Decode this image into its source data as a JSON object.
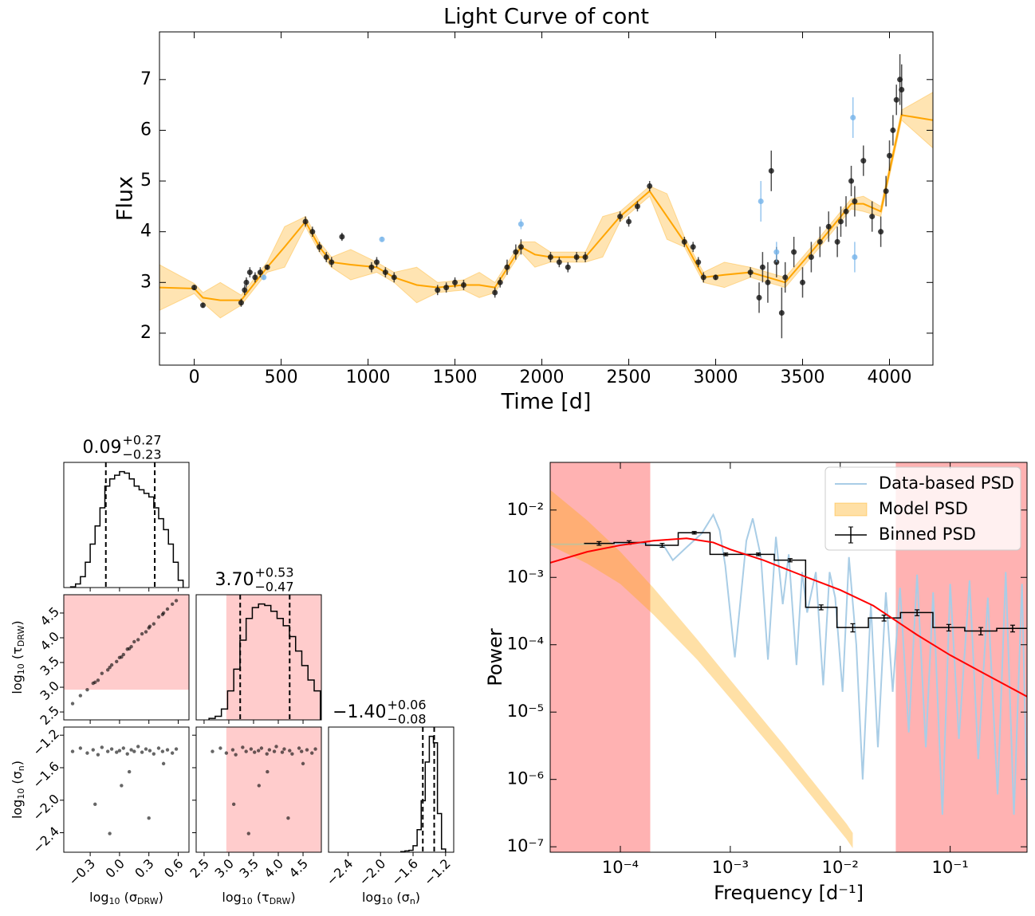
{
  "chart_data": [
    {
      "type": "errorbar",
      "title": "Light Curve of cont",
      "x_label": "Time [d]",
      "y_label": "Flux",
      "xlim": [
        -200,
        4250
      ],
      "ylim": [
        1.37,
        7.94
      ],
      "xticks": [
        0,
        500,
        1000,
        1500,
        2000,
        2500,
        3000,
        3500,
        4000
      ],
      "yticks": [
        2,
        3,
        4,
        5,
        6,
        7
      ],
      "series": [
        {
          "color": "#111111",
          "x": [
            0,
            50,
            270,
            290,
            300,
            320,
            350,
            380,
            420,
            640,
            680,
            720,
            760,
            790,
            850,
            1020,
            1050,
            1100,
            1150,
            1400,
            1450,
            1500,
            1550,
            1730,
            1760,
            1800,
            1850,
            1880,
            2050,
            2100,
            2150,
            2200,
            2250,
            2450,
            2500,
            2550,
            2620,
            2820,
            2870,
            2900,
            2930,
            3000,
            3200,
            3250,
            3270,
            3300,
            3320,
            3350,
            3380,
            3400,
            3450,
            3500,
            3550,
            3600,
            3650,
            3700,
            3720,
            3750,
            3780,
            3800,
            3850,
            3900,
            3950,
            3980,
            4000,
            4020,
            4040,
            4060,
            4070
          ],
          "values": [
            2.9,
            2.55,
            2.6,
            2.85,
            3.0,
            3.2,
            3.1,
            3.2,
            3.3,
            4.2,
            4.0,
            3.7,
            3.5,
            3.4,
            3.9,
            3.3,
            3.4,
            3.2,
            3.1,
            2.85,
            2.9,
            3.0,
            2.95,
            2.8,
            3.0,
            3.3,
            3.6,
            3.7,
            3.5,
            3.4,
            3.3,
            3.5,
            3.5,
            4.3,
            4.2,
            4.5,
            4.9,
            3.8,
            3.7,
            3.4,
            3.1,
            3.1,
            3.2,
            2.7,
            3.3,
            3.0,
            5.2,
            3.4,
            2.4,
            3.1,
            3.6,
            3.0,
            3.5,
            3.8,
            4.1,
            3.8,
            4.2,
            4.4,
            5.0,
            4.6,
            5.4,
            4.3,
            4.0,
            4.8,
            5.5,
            6.0,
            6.6,
            7.0,
            6.8
          ],
          "errors": [
            0.05,
            0.05,
            0.08,
            0.1,
            0.1,
            0.1,
            0.1,
            0.1,
            0.05,
            0.1,
            0.1,
            0.1,
            0.1,
            0.1,
            0.08,
            0.1,
            0.1,
            0.1,
            0.1,
            0.1,
            0.1,
            0.1,
            0.1,
            0.1,
            0.1,
            0.15,
            0.15,
            0.15,
            0.1,
            0.1,
            0.1,
            0.1,
            0.1,
            0.1,
            0.1,
            0.1,
            0.1,
            0.1,
            0.1,
            0.1,
            0.1,
            0.05,
            0.1,
            0.3,
            0.3,
            0.4,
            0.4,
            0.3,
            0.5,
            0.3,
            0.3,
            0.3,
            0.3,
            0.3,
            0.3,
            0.3,
            0.3,
            0.3,
            0.3,
            0.3,
            0.3,
            0.3,
            0.3,
            0.3,
            0.3,
            0.3,
            0.3,
            0.5,
            0.5
          ]
        },
        {
          "color": "#74b3ea",
          "x": [
            400,
            1080,
            1880,
            3260,
            3350,
            3790,
            3800
          ],
          "values": [
            3.1,
            3.85,
            4.15,
            4.6,
            3.6,
            6.25,
            3.5
          ],
          "errors": [
            0.05,
            0.05,
            0.1,
            0.4,
            0.2,
            0.4,
            0.3
          ]
        }
      ],
      "model": {
        "color": "#ffa500",
        "x": [
          -200,
          0,
          50,
          150,
          270,
          420,
          520,
          640,
          720,
          790,
          900,
          1050,
          1150,
          1280,
          1400,
          1550,
          1640,
          1730,
          1880,
          1960,
          2050,
          2250,
          2350,
          2450,
          2620,
          2720,
          2820,
          2930,
          3050,
          3200,
          3400,
          3600,
          3780,
          3850,
          3950,
          4070,
          4250
        ],
        "values": [
          2.9,
          2.88,
          2.7,
          2.65,
          2.65,
          3.3,
          3.7,
          4.2,
          3.7,
          3.4,
          3.35,
          3.3,
          3.1,
          2.95,
          2.9,
          2.95,
          2.95,
          2.9,
          3.7,
          3.55,
          3.5,
          3.5,
          3.9,
          4.3,
          4.8,
          4.3,
          3.8,
          3.1,
          3.15,
          3.2,
          3.0,
          3.8,
          4.55,
          4.55,
          4.4,
          6.3,
          6.2
        ],
        "errors": [
          0.45,
          0.1,
          0.1,
          0.35,
          0.1,
          0.1,
          0.4,
          0.1,
          0.1,
          0.1,
          0.3,
          0.1,
          0.1,
          0.35,
          0.1,
          0.1,
          0.25,
          0.1,
          0.1,
          0.25,
          0.1,
          0.1,
          0.4,
          0.1,
          0.1,
          0.45,
          0.1,
          0.1,
          0.25,
          0.1,
          0.1,
          0.1,
          0.1,
          0.15,
          0.1,
          0.1,
          0.55
        ]
      }
    },
    {
      "type": "corner",
      "color": "#000000",
      "params": [
        {
          "label": [
            "log",
            "10",
            " (σ",
            "DRW",
            ")"
          ],
          "title": "0.09",
          "upper": "+0.27",
          "lower": "−0.23",
          "lim": [
            -0.57,
            0.71
          ],
          "ticks": [
            {
              "value": -0.3,
              "label": "−0.3"
            },
            {
              "value": 0,
              "label": "0.0"
            },
            0.3,
            0.6
          ],
          "quantiles": [
            -0.14,
            0.36
          ],
          "bins": [
            -0.5,
            -0.45,
            -0.4,
            -0.35,
            -0.3,
            -0.25,
            -0.2,
            -0.15,
            -0.1,
            -0.05,
            0,
            0.05,
            0.1,
            0.15,
            0.2,
            0.25,
            0.3,
            0.35,
            0.4,
            0.45,
            0.5,
            0.55,
            0.6,
            0.65
          ],
          "counts": [
            1,
            5,
            15,
            35,
            60,
            85,
            110,
            140,
            150,
            155,
            160,
            158,
            150,
            140,
            135,
            130,
            125,
            110,
            95,
            80,
            60,
            35,
            10
          ]
        },
        {
          "label": [
            "log",
            "10",
            " (τ",
            "DRW",
            ")"
          ],
          "title": "3.70",
          "upper": "+0.53",
          "lower": "−0.47",
          "lim": [
            2.34,
            4.87
          ],
          "ticks": [
            2.5,
            {
              "value": 3,
              "label": "3.0"
            },
            3.5,
            {
              "value": 4,
              "label": "4.0"
            },
            4.5
          ],
          "quantiles": [
            3.23,
            4.23
          ],
          "bins": [
            2.6,
            2.725,
            2.85,
            2.975,
            3.1,
            3.225,
            3.35,
            3.475,
            3.6,
            3.725,
            3.85,
            3.975,
            4.1,
            4.225,
            4.35,
            4.475,
            4.6,
            4.725,
            4.85
          ],
          "counts": [
            2,
            5,
            15,
            40,
            70,
            110,
            140,
            155,
            160,
            158,
            150,
            140,
            130,
            115,
            95,
            75,
            55,
            40
          ]
        },
        {
          "label": [
            "log",
            "10",
            " (σ",
            "n",
            ")"
          ],
          "title": "−1.40",
          "upper": "+0.06",
          "lower": "−0.08",
          "lim": [
            -2.64,
            -1.1
          ],
          "ticks": [
            {
              "value": -2.4,
              "label": "−2.4"
            },
            {
              "value": -2,
              "label": "−2.0"
            },
            {
              "value": -1.6,
              "label": "−1.6"
            },
            {
              "value": -1.2,
              "label": "−1.2"
            }
          ],
          "quantiles": [
            -1.48,
            -1.34
          ],
          "bins": [
            -1.75,
            -1.7,
            -1.65,
            -1.6,
            -1.55,
            -1.5,
            -1.45,
            -1.4,
            -1.35,
            -1.3,
            -1.25,
            -1.2
          ],
          "counts": [
            1,
            2,
            3,
            10,
            35,
            80,
            140,
            180,
            170,
            60,
            5
          ]
        }
      ],
      "samples": [
        [
          -0.48,
          2.67,
          -1.4
        ],
        [
          -0.4,
          2.83,
          -1.36
        ],
        [
          -0.33,
          2.95,
          -1.42
        ],
        [
          -0.27,
          3.08,
          -1.38
        ],
        [
          -0.22,
          3.14,
          -1.44
        ],
        [
          -0.18,
          3.28,
          -1.35
        ],
        [
          -0.12,
          3.35,
          -1.4
        ],
        [
          -0.08,
          3.45,
          -1.37
        ],
        [
          -0.03,
          3.52,
          -1.41
        ],
        [
          0.0,
          3.6,
          -1.39
        ],
        [
          0.04,
          3.66,
          -1.36
        ],
        [
          0.08,
          3.77,
          -1.43
        ],
        [
          0.12,
          3.82,
          -1.38
        ],
        [
          0.15,
          3.92,
          -1.4
        ],
        [
          0.19,
          3.96,
          -1.34
        ],
        [
          0.23,
          4.08,
          -1.41
        ],
        [
          0.27,
          4.12,
          -1.37
        ],
        [
          0.31,
          4.23,
          -1.39
        ],
        [
          0.35,
          4.28,
          -1.43
        ],
        [
          0.4,
          4.42,
          -1.36
        ],
        [
          0.44,
          4.47,
          -1.4
        ],
        [
          0.49,
          4.58,
          -1.38
        ],
        [
          0.54,
          4.68,
          -1.42
        ],
        [
          0.58,
          4.75,
          -1.37
        ],
        [
          0.02,
          3.61,
          -1.82
        ],
        [
          -0.25,
          3.1,
          -2.05
        ],
        [
          0.3,
          4.2,
          -2.22
        ],
        [
          0.1,
          3.78,
          -1.65
        ],
        [
          -0.1,
          3.4,
          -2.41
        ],
        [
          0.45,
          4.5,
          -1.55
        ]
      ],
      "shaded": {
        "param": 1,
        "range": [
          2.95,
          4.87
        ],
        "color": "#ffcccc"
      }
    },
    {
      "type": "psd",
      "x_label": "Frequency [d⁻¹]",
      "y_label": "Power",
      "log_x": true,
      "log_y": true,
      "xlim": [
        2.3e-05,
        0.5
      ],
      "ylim": [
        8.3e-08,
        0.051
      ],
      "xticks": [
        {
          "value": 0.0001,
          "label": "10⁻⁴"
        },
        {
          "value": 0.001,
          "label": "10⁻³"
        },
        {
          "value": 0.01,
          "label": "10⁻²"
        },
        {
          "value": 0.1,
          "label": "10⁻¹"
        }
      ],
      "yticks": [
        {
          "value": 1e-07,
          "label": "10⁻⁷"
        },
        {
          "value": 1e-06,
          "label": "10⁻⁶"
        },
        {
          "value": 1e-05,
          "label": "10⁻⁵"
        },
        {
          "value": 0.0001,
          "label": "10⁻⁴"
        },
        {
          "value": 0.001,
          "label": "10⁻³"
        },
        {
          "value": 0.01,
          "label": "10⁻²"
        }
      ],
      "shaded_ranges": [
        [
          2.3e-05,
          0.000187
        ],
        [
          0.032,
          0.5
        ]
      ],
      "shade_color": "#ff0000",
      "legend": "upper right",
      "series": [
        {
          "name": "Data-based PSD",
          "type": "line",
          "color": "#a9cde6",
          "x": [
            2.3e-05,
            4e-05,
            8e-05,
            0.00015,
            0.00025,
            0.0003,
            0.0004,
            0.00055,
            0.0007,
            0.0008,
            0.0009,
            0.0011,
            0.0014,
            0.0016,
            0.0019,
            0.0022,
            0.0026,
            0.003,
            0.0034,
            0.004,
            0.0045,
            0.005,
            0.006,
            0.007,
            0.008,
            0.009,
            0.0105,
            0.012,
            0.014,
            0.016,
            0.019,
            0.022,
            0.026,
            0.03,
            0.035,
            0.042,
            0.05,
            0.06,
            0.07,
            0.085,
            0.1,
            0.12,
            0.15,
            0.18,
            0.22,
            0.27,
            0.32,
            0.38,
            0.45,
            0.5
          ],
          "values": [
            0.0031,
            0.0031,
            0.0032,
            0.0032,
            0.0029,
            0.0018,
            0.0028,
            0.0045,
            0.0085,
            0.005,
            0.0015,
            6.5e-05,
            0.0035,
            0.0075,
            0.002,
            6e-05,
            0.004,
            0.0004,
            0.0022,
            5e-05,
            0.0012,
            0.0003,
            0.0012,
            2.5e-05,
            0.0012,
            0.0005,
            2e-05,
            0.002,
            0.0001,
            1e-06,
            0.0004,
            3e-06,
            0.0006,
            2e-05,
            0.0007,
            5e-06,
            0.0011,
            3e-06,
            0.0006,
            3e-07,
            0.0008,
            4e-06,
            0.0009,
            2e-06,
            0.0005,
            6e-07,
            0.0012,
            3e-07,
            0.0008,
            5e-07
          ]
        },
        {
          "name": "Model PSD",
          "type": "band",
          "color": "#ffa500",
          "x": [
            2.3e-05,
            5e-05,
            0.0001,
            0.0002,
            0.0005,
            0.001,
            0.003,
            0.0114,
            0.013
          ],
          "lower": [
            0.003,
            0.0016,
            0.0008,
            0.00028,
            6e-05,
            1.6e-05,
            1.9e-06,
            1.3e-07,
            9.5e-08
          ],
          "upper": [
            0.02,
            0.007,
            0.0024,
            0.0007,
            0.00012,
            3e-05,
            3.4e-06,
            2.2e-07,
            1.6e-07
          ]
        },
        {
          "name": "Binned PSD",
          "type": "steps",
          "color": "#000000",
          "x": [
            6.4e-05,
            0.00012,
            0.00024,
            0.00047,
            0.00091,
            0.0018,
            0.0035,
            0.0067,
            0.013,
            0.025,
            0.05,
            0.097,
            0.19,
            0.37
          ],
          "values": [
            0.0032,
            0.0033,
            0.003,
            0.0046,
            0.0022,
            0.0022,
            0.0018,
            0.00036,
            0.00018,
            0.00025,
            0.0003,
            0.00018,
            0.00016,
            0.000175
          ],
          "errors": [
            0.0002,
            0.0002,
            0.0002,
            0.0002,
            0.0001,
            0.0001,
            0.0001,
            3e-05,
            2.5e-05,
            2.5e-05,
            3e-05,
            2e-05,
            2e-05,
            2e-05
          ]
        }
      ],
      "fit": {
        "color": "#ff0000",
        "x": [
          2.3e-05,
          5e-05,
          0.0001,
          0.0002,
          0.0004,
          0.0007,
          0.001,
          0.002,
          0.005,
          0.01,
          0.02,
          0.05,
          0.1,
          0.2,
          0.5
        ],
        "values": [
          0.00165,
          0.0024,
          0.003,
          0.0035,
          0.0038,
          0.0033,
          0.0026,
          0.0018,
          0.001,
          0.00065,
          0.00038,
          0.00014,
          7e-05,
          3.8e-05,
          1.7e-05
        ]
      }
    }
  ]
}
